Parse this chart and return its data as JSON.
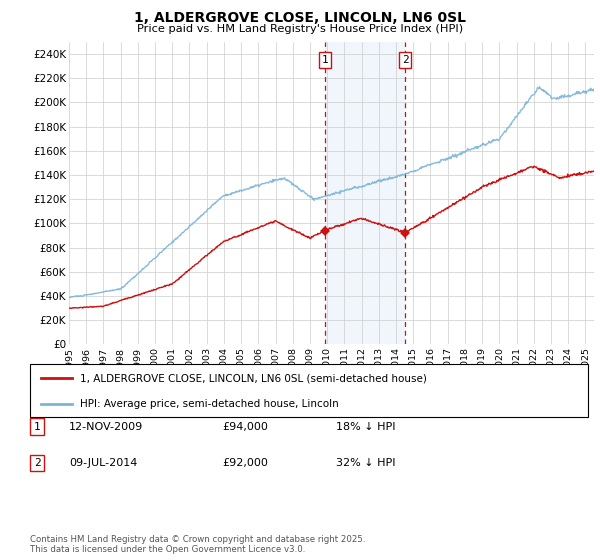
{
  "title": "1, ALDERGROVE CLOSE, LINCOLN, LN6 0SL",
  "subtitle": "Price paid vs. HM Land Registry's House Price Index (HPI)",
  "ylabel_ticks": [
    "£0",
    "£20K",
    "£40K",
    "£60K",
    "£80K",
    "£100K",
    "£120K",
    "£140K",
    "£160K",
    "£180K",
    "£200K",
    "£220K",
    "£240K"
  ],
  "ytick_values": [
    0,
    20000,
    40000,
    60000,
    80000,
    100000,
    120000,
    140000,
    160000,
    180000,
    200000,
    220000,
    240000
  ],
  "ylim": [
    0,
    250000
  ],
  "hpi_color": "#7ab4d8",
  "price_color": "#cc1111",
  "vline_color": "#cc1111",
  "shade_color": "#d6e8f5",
  "sale1_year": 2009.87,
  "sale2_year": 2014.53,
  "sale1_price": 94000,
  "sale2_price": 92000,
  "legend_label_price": "1, ALDERGROVE CLOSE, LINCOLN, LN6 0SL (semi-detached house)",
  "legend_label_hpi": "HPI: Average price, semi-detached house, Lincoln",
  "table_row1": [
    "1",
    "12-NOV-2009",
    "£94,000",
    "18% ↓ HPI"
  ],
  "table_row2": [
    "2",
    "09-JUL-2014",
    "£92,000",
    "32% ↓ HPI"
  ],
  "footer": "Contains HM Land Registry data © Crown copyright and database right 2025.\nThis data is licensed under the Open Government Licence v3.0.",
  "background_color": "#ffffff",
  "grid_color": "#cccccc",
  "xlim_start": 1995,
  "xlim_end": 2025.5
}
